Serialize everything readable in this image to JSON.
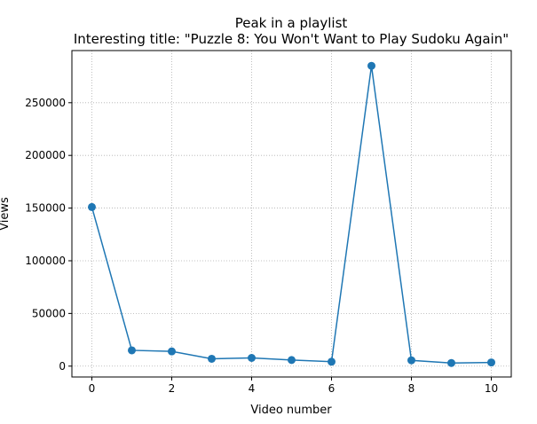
{
  "chart_data": {
    "type": "line",
    "title": "Peak in a playlist",
    "subtitle": "Interesting title: \"Puzzle 8: You Won't Want to Play Sudoku Again\"",
    "xlabel": "Video number",
    "ylabel": "Views",
    "x": [
      0,
      1,
      2,
      3,
      4,
      5,
      6,
      7,
      8,
      9,
      10
    ],
    "series": [
      {
        "values": [
          151000,
          15000,
          14000,
          7000,
          7800,
          5800,
          4200,
          285000,
          5500,
          3000,
          3500
        ]
      }
    ],
    "xlim": [
      -0.5,
      10.5
    ],
    "ylim": [
      -10300,
      299500
    ],
    "xticks": [
      0,
      2,
      4,
      6,
      8,
      10
    ],
    "yticks": [
      0,
      50000,
      100000,
      150000,
      200000,
      250000
    ],
    "grid": true,
    "color": "#1f77b4"
  }
}
